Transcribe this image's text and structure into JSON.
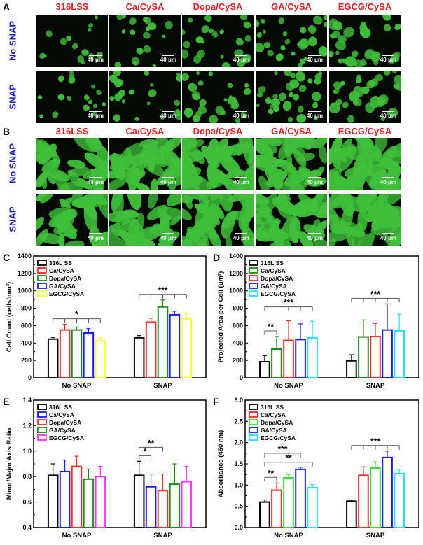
{
  "panel_labels": [
    "A",
    "B",
    "C",
    "D",
    "E",
    "F"
  ],
  "micro": {
    "columns": [
      "316LSS",
      "Ca/CySA",
      "Dopa/CySA",
      "GA/CySA",
      "EGCG/CySA"
    ],
    "rows": [
      "No SNAP",
      "SNAP"
    ],
    "scale_label": "40 μm"
  },
  "colors": {
    "header_red": "#e02020",
    "row_blue": "#2020c0",
    "cell_green": "#3fbf3a"
  },
  "chart_data": [
    {
      "panel": "C",
      "type": "bar",
      "ylabel": "Cell Count (cells/mm²)",
      "ylim": [
        0,
        1400
      ],
      "yticks": [
        "0",
        "200",
        "400",
        "600",
        "800",
        "1000",
        "1200",
        "1400"
      ],
      "categories": [
        "No SNAP",
        "SNAP"
      ],
      "legend_position": "top-left",
      "series": [
        {
          "name": "316L SS",
          "color": "#000000",
          "values": [
            445,
            460
          ],
          "errors": [
            20,
            25
          ]
        },
        {
          "name": "Ca/CySA",
          "color": "#ff2a2a",
          "values": [
            550,
            640
          ],
          "errors": [
            65,
            45
          ]
        },
        {
          "name": "Dopa/CySA",
          "color": "#1a8a1a",
          "values": [
            550,
            815
          ],
          "errors": [
            35,
            80
          ]
        },
        {
          "name": "GA/CySA",
          "color": "#1a1aff",
          "values": [
            515,
            725
          ],
          "errors": [
            50,
            40
          ]
        },
        {
          "name": "EGCG/CySA",
          "color": "#ffff33",
          "values": [
            425,
            675
          ],
          "errors": [
            35,
            65
          ]
        }
      ],
      "significance": [
        {
          "group": "No SNAP",
          "text": "*",
          "from": 0,
          "to": [
            1,
            2,
            3,
            4
          ]
        },
        {
          "group": "SNAP",
          "text": "***",
          "from": 0,
          "to": [
            1,
            2,
            3,
            4
          ]
        }
      ]
    },
    {
      "panel": "D",
      "type": "bar",
      "ylabel": "Projected Area per Cell (um²)",
      "ylim": [
        0,
        1400
      ],
      "yticks": [
        "0",
        "200",
        "400",
        "600",
        "800",
        "1000",
        "1200",
        "1400"
      ],
      "categories": [
        "No SNAP",
        "SNAP"
      ],
      "legend_position": "top-left",
      "series": [
        {
          "name": "316L SS",
          "color": "#000000",
          "values": [
            185,
            195
          ],
          "errors": [
            70,
            70
          ]
        },
        {
          "name": "Ca/CySA",
          "color": "#1a8a1a",
          "values": [
            330,
            470
          ],
          "errors": [
            145,
            195
          ]
        },
        {
          "name": "Dopa/CySA",
          "color": "#ff2a2a",
          "values": [
            430,
            475
          ],
          "errors": [
            225,
            150
          ]
        },
        {
          "name": "GA/CySA",
          "color": "#1a1aff",
          "values": [
            440,
            550
          ],
          "errors": [
            180,
            300
          ]
        },
        {
          "name": "EGCG/CySA",
          "color": "#22e0f0",
          "values": [
            460,
            540
          ],
          "errors": [
            190,
            190
          ]
        }
      ],
      "significance": [
        {
          "group": "No SNAP",
          "text": "**",
          "from": 0,
          "to": [
            1
          ]
        },
        {
          "group": "No SNAP",
          "text": "***",
          "from": 0,
          "to": [
            2,
            3,
            4
          ]
        },
        {
          "group": "SNAP",
          "text": "***",
          "from": 0,
          "to": [
            1,
            2,
            3,
            4
          ]
        }
      ]
    },
    {
      "panel": "E",
      "type": "bar",
      "ylabel": "Minor/Major Axis Ratio",
      "ylim": [
        0.4,
        1.4
      ],
      "yticks": [
        "0.4",
        "0.6",
        "0.8",
        "1.0",
        "1.2",
        "1.4"
      ],
      "categories": [
        "No SNAP",
        "SNAP"
      ],
      "legend_position": "top-left",
      "series": [
        {
          "name": "316L SS",
          "color": "#000000",
          "values": [
            0.81,
            0.81
          ],
          "errors": [
            0.09,
            0.11
          ]
        },
        {
          "name": "Ca/CySA",
          "color": "#1a1aff",
          "values": [
            0.84,
            0.72
          ],
          "errors": [
            0.09,
            0.1
          ]
        },
        {
          "name": "Dopa/CySA",
          "color": "#ff2a2a",
          "values": [
            0.88,
            0.69
          ],
          "errors": [
            0.08,
            0.13
          ]
        },
        {
          "name": "GA/CySA",
          "color": "#1a8a1a",
          "values": [
            0.78,
            0.74
          ],
          "errors": [
            0.08,
            0.16
          ]
        },
        {
          "name": "EGCG/CySA",
          "color": "#ff33ff",
          "values": [
            0.8,
            0.76
          ],
          "errors": [
            0.08,
            0.12
          ]
        }
      ],
      "significance": [
        {
          "group": "SNAP",
          "text": "*",
          "from": 0,
          "to": [
            1
          ]
        },
        {
          "group": "SNAP",
          "text": "**",
          "from": 0,
          "to": [
            2
          ]
        }
      ]
    },
    {
      "panel": "F",
      "type": "bar",
      "ylabel": "Absorbance (450 nm)",
      "ylim": [
        0.0,
        3.0
      ],
      "yticks": [
        "0.0",
        "0.5",
        "1.0",
        "1.5",
        "2.0",
        "2.5",
        "3.0"
      ],
      "categories": [
        "No SNAP",
        "SNAP"
      ],
      "legend_position": "top-left",
      "series": [
        {
          "name": "316L SS",
          "color": "#000000",
          "values": [
            0.6,
            0.62
          ],
          "errors": [
            0.05,
            0.03
          ]
        },
        {
          "name": "Ca/CySA",
          "color": "#ff2a2a",
          "values": [
            0.88,
            1.23
          ],
          "errors": [
            0.17,
            0.2
          ]
        },
        {
          "name": "Dopa/CySA",
          "color": "#33dd33",
          "values": [
            1.17,
            1.4
          ],
          "errors": [
            0.08,
            0.15
          ]
        },
        {
          "name": "GA/CySA",
          "color": "#1a1aff",
          "values": [
            1.37,
            1.65
          ],
          "errors": [
            0.05,
            0.15
          ]
        },
        {
          "name": "EGCG/CySA",
          "color": "#22e0f0",
          "values": [
            0.94,
            1.27
          ],
          "errors": [
            0.07,
            0.1
          ]
        }
      ],
      "significance": [
        {
          "group": "No SNAP",
          "text": "**",
          "from": 0,
          "to": [
            1
          ]
        },
        {
          "group": "No SNAP",
          "text": "***",
          "from": 0,
          "to": [
            2,
            3
          ]
        },
        {
          "group": "No SNAP",
          "text": "**",
          "from": 0,
          "to": [
            4
          ]
        },
        {
          "group": "SNAP",
          "text": "***",
          "from": 0,
          "to": [
            1,
            2,
            3,
            4
          ]
        }
      ]
    }
  ]
}
